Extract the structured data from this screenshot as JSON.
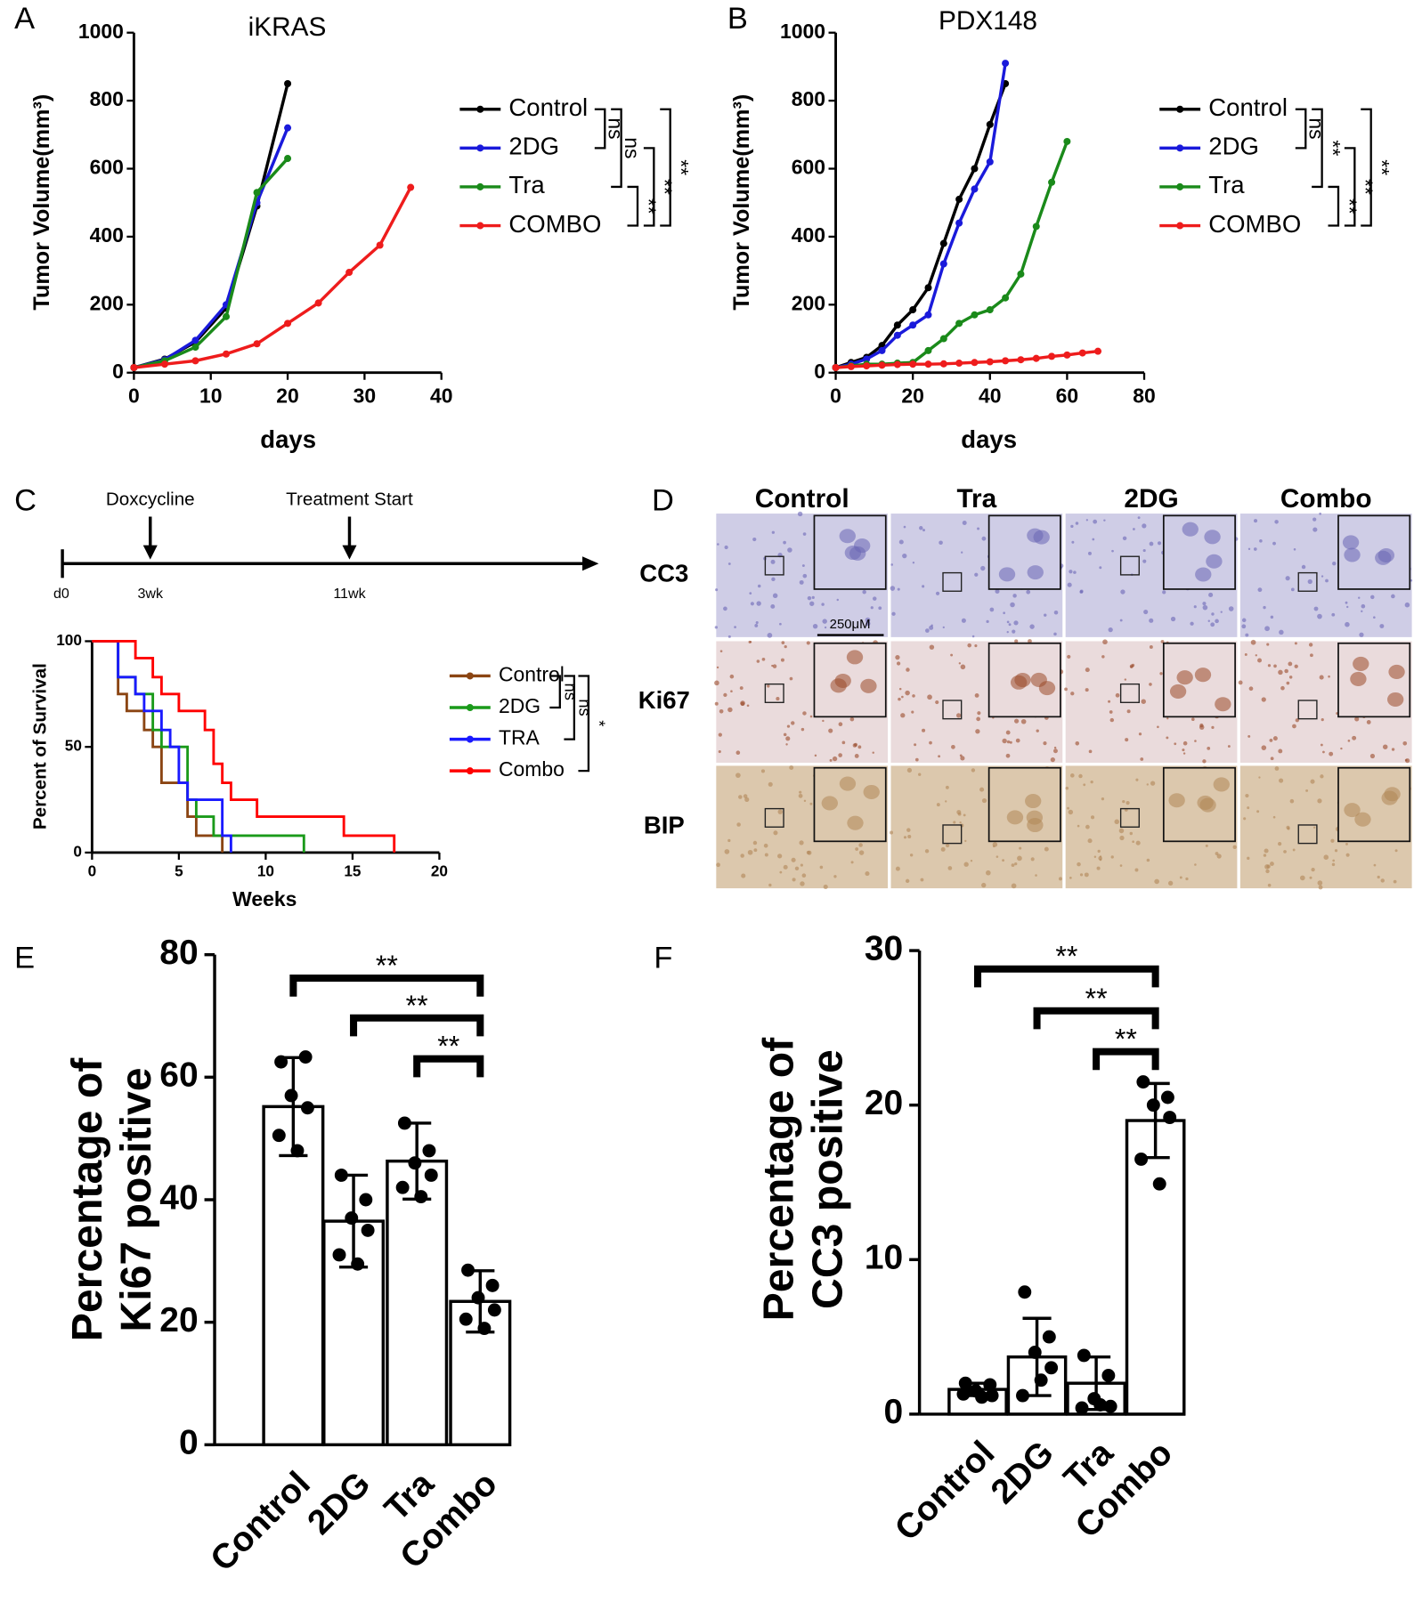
{
  "chart_data": [
    {
      "type": "line",
      "panel": "A",
      "title": "iKRAS",
      "x_label": "days",
      "y_label": "Tumor Volume(mm³)",
      "xlim": [
        0,
        40
      ],
      "xticks": [
        0,
        10,
        20,
        30,
        40
      ],
      "ylim": [
        0,
        1000
      ],
      "yticks": [
        0,
        200,
        400,
        600,
        800,
        1000
      ],
      "series": [
        {
          "name": "Control",
          "color": "#000000",
          "x": [
            0,
            4,
            8,
            12,
            16,
            20
          ],
          "values": [
            15,
            40,
            90,
            190,
            490,
            850
          ]
        },
        {
          "name": "2DG",
          "color": "#1a1adb",
          "x": [
            0,
            4,
            8,
            12,
            16,
            20
          ],
          "values": [
            15,
            38,
            95,
            200,
            500,
            720
          ]
        },
        {
          "name": "Tra",
          "color": "#1a8a1a",
          "x": [
            0,
            4,
            8,
            12,
            16,
            20
          ],
          "values": [
            15,
            35,
            75,
            165,
            530,
            630
          ]
        },
        {
          "name": "COMBO",
          "color": "#ee1c1c",
          "x": [
            0,
            4,
            8,
            12,
            16,
            20,
            24,
            28,
            32,
            36
          ],
          "values": [
            15,
            25,
            35,
            55,
            85,
            145,
            205,
            295,
            375,
            545
          ]
        }
      ],
      "brackets": [
        {
          "pair": [
            "Control",
            "2DG"
          ],
          "label": "ns"
        },
        {
          "pair": [
            "Control",
            "Tra"
          ],
          "label": "ns"
        },
        {
          "pair": [
            "Tra",
            "COMBO"
          ],
          "label": "**"
        },
        {
          "pair": [
            "2DG",
            "COMBO"
          ],
          "label": "**"
        },
        {
          "pair": [
            "Control",
            "COMBO"
          ],
          "label": "**"
        }
      ]
    },
    {
      "type": "line",
      "panel": "B",
      "title": "PDX148",
      "x_label": "days",
      "y_label": "Tumor Volume(mm³)",
      "xlim": [
        0,
        80
      ],
      "xticks": [
        0,
        20,
        40,
        60,
        80
      ],
      "ylim": [
        0,
        1000
      ],
      "yticks": [
        0,
        200,
        400,
        600,
        800,
        1000
      ],
      "series": [
        {
          "name": "Control",
          "color": "#000000",
          "x": [
            0,
            4,
            8,
            12,
            16,
            20,
            24,
            28,
            32,
            36,
            40,
            44
          ],
          "values": [
            15,
            30,
            45,
            80,
            140,
            185,
            250,
            380,
            510,
            600,
            730,
            850
          ]
        },
        {
          "name": "2DG",
          "color": "#1a1adb",
          "x": [
            0,
            4,
            8,
            12,
            16,
            20,
            24,
            28,
            32,
            36,
            40,
            44
          ],
          "values": [
            15,
            25,
            40,
            65,
            110,
            140,
            170,
            320,
            440,
            540,
            620,
            910
          ]
        },
        {
          "name": "Tra",
          "color": "#1a8a1a",
          "x": [
            0,
            4,
            8,
            12,
            16,
            20,
            24,
            28,
            32,
            36,
            40,
            44,
            48,
            52,
            56,
            60
          ],
          "values": [
            15,
            20,
            25,
            25,
            28,
            30,
            65,
            100,
            145,
            170,
            185,
            220,
            290,
            430,
            560,
            680
          ]
        },
        {
          "name": "COMBO",
          "color": "#ee1c1c",
          "x": [
            0,
            4,
            8,
            12,
            16,
            20,
            24,
            28,
            32,
            36,
            40,
            44,
            48,
            52,
            56,
            60,
            64,
            68
          ],
          "values": [
            15,
            18,
            20,
            22,
            24,
            25,
            25,
            26,
            28,
            30,
            32,
            35,
            38,
            42,
            48,
            52,
            58,
            63
          ]
        }
      ],
      "brackets": [
        {
          "pair": [
            "Control",
            "2DG"
          ],
          "label": "ns"
        },
        {
          "pair": [
            "Control",
            "Tra"
          ],
          "label": "**"
        },
        {
          "pair": [
            "Tra",
            "COMBO"
          ],
          "label": "**"
        },
        {
          "pair": [
            "2DG",
            "COMBO"
          ],
          "label": "**"
        },
        {
          "pair": [
            "Control",
            "COMBO"
          ],
          "label": "**"
        }
      ]
    },
    {
      "type": "step",
      "panel": "C",
      "x_label": "Weeks",
      "y_label": "Percent of Survival",
      "xlim": [
        0,
        20
      ],
      "xticks": [
        0,
        5,
        10,
        15,
        20
      ],
      "ylim": [
        0,
        100
      ],
      "yticks": [
        0,
        50,
        100
      ],
      "series": [
        {
          "name": "Control",
          "color": "#8b4513",
          "x": [
            0,
            1.5,
            2,
            3,
            3.5,
            4,
            5.5,
            6,
            7.5
          ],
          "values": [
            100,
            75,
            67,
            58,
            50,
            33,
            17,
            8,
            0
          ]
        },
        {
          "name": "2DG",
          "color": "#1a9a1a",
          "x": [
            0,
            1.5,
            2.5,
            3.5,
            4,
            5.5,
            6,
            7,
            12.2
          ],
          "values": [
            100,
            83,
            75,
            58,
            50,
            25,
            17,
            8,
            0
          ]
        },
        {
          "name": "TRA",
          "color": "#1a1aff",
          "x": [
            0,
            1.5,
            2.5,
            3,
            4,
            4.5,
            5,
            5.5,
            7.5,
            8
          ],
          "values": [
            100,
            83,
            75,
            67,
            58,
            50,
            33,
            25,
            8,
            0
          ]
        },
        {
          "name": "Combo",
          "color": "#ff0000",
          "x": [
            0,
            2.5,
            3.5,
            4,
            5,
            6.5,
            7,
            7.5,
            8,
            9.5,
            14.5,
            17.4
          ],
          "values": [
            100,
            92,
            83,
            75,
            67,
            58,
            42,
            33,
            25,
            17,
            8,
            0
          ]
        }
      ],
      "brackets": [
        {
          "pair": [
            "Control",
            "2DG"
          ],
          "label": "ns"
        },
        {
          "pair": [
            "Control",
            "TRA"
          ],
          "label": "ns"
        },
        {
          "pair": [
            "Control",
            "Combo"
          ],
          "label": "*"
        }
      ]
    },
    {
      "type": "bar",
      "panel": "E",
      "y_label": [
        "Percentage of",
        "Ki67 positive"
      ],
      "categories": [
        "Control",
        "2DG",
        "Tra",
        "Combo"
      ],
      "values": [
        55.2,
        36.5,
        46.3,
        23.4
      ],
      "errors": [
        8,
        7.5,
        6.2,
        5
      ],
      "points": [
        [
          62.5,
          63.3,
          57,
          55,
          50.5,
          48
        ],
        [
          44,
          40,
          37,
          35,
          31,
          29.5
        ],
        [
          52.5,
          48,
          46,
          44,
          42,
          40.5
        ],
        [
          28.5,
          26,
          24,
          22,
          20.5,
          19
        ]
      ],
      "ylim": [
        0,
        80
      ],
      "yticks": [
        0,
        20,
        40,
        60,
        80
      ],
      "brackets": [
        {
          "pair": [
            "Control",
            "Combo"
          ],
          "label": "**"
        },
        {
          "pair": [
            "2DG",
            "Combo"
          ],
          "label": "**"
        },
        {
          "pair": [
            "Tra",
            "Combo"
          ],
          "label": "**"
        }
      ]
    },
    {
      "type": "bar",
      "panel": "F",
      "y_label": [
        "Percentage of",
        "CC3 positive"
      ],
      "categories": [
        "Control",
        "2DG",
        "Tra",
        "Combo"
      ],
      "values": [
        1.6,
        3.7,
        2.0,
        19.0
      ],
      "errors": [
        0.4,
        2.5,
        1.7,
        2.4
      ],
      "points": [
        [
          2.0,
          1.9,
          1.5,
          1.2,
          1.3,
          1.1
        ],
        [
          7.9,
          5.0,
          4.0,
          3.0,
          1.2,
          2.2
        ],
        [
          3.8,
          2.5,
          1.0,
          0.5,
          0.4,
          0.6
        ],
        [
          21.5,
          20.5,
          20.0,
          19.2,
          16.5,
          14.9
        ]
      ],
      "ylim": [
        0,
        30
      ],
      "yticks": [
        0,
        10,
        20,
        30
      ],
      "brackets": [
        {
          "pair": [
            "Control",
            "Combo"
          ],
          "label": "**"
        },
        {
          "pair": [
            "2DG",
            "Combo"
          ],
          "label": "**"
        },
        {
          "pair": [
            "Tra",
            "Combo"
          ],
          "label": "**"
        }
      ]
    }
  ],
  "timeline": {
    "events": [
      "Doxcycline",
      "Treatment Start"
    ],
    "marks": [
      "d0",
      "3wk",
      "11wk"
    ]
  },
  "panel_d": {
    "panel": "D",
    "columns": [
      "Control",
      "Tra",
      "2DG",
      "Combo"
    ],
    "rows": [
      "CC3",
      "Ki67",
      "BIP"
    ],
    "scale_bar": "250μM"
  }
}
